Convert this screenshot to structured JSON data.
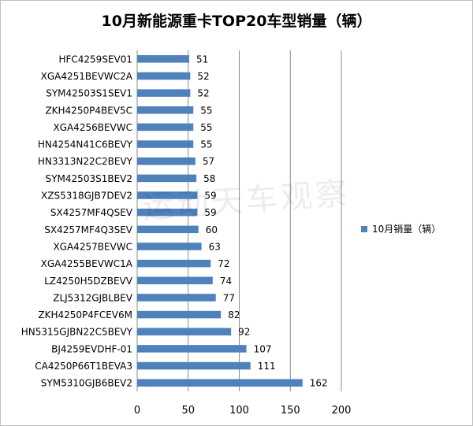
{
  "chart_data": {
    "type": "bar",
    "orientation": "horizontal",
    "title": "10月新能源重卡TOP20车型销量（辆）",
    "categories": [
      "HFC4259SEV01",
      "XGA4251BEVWC2A",
      "SYM42503S1SEV1",
      "ZKH4250P4BEV5C",
      "XGA4256BEVWC",
      "HN4254N41C6BEVY",
      "HN3313N22C2BEVY",
      "SYM42503S1BEV2",
      "XZS5318GJB7DEV2",
      "SX4257MF4QSEV",
      "SX4257MF4Q3SEV",
      "XGA4257BEVWC",
      "XGA4255BEVWC1A",
      "LZ4250H5DZBEVV",
      "ZLJ5312GJBLBEV",
      "ZKH4250P4FCEV6M",
      "HN5315GJBN22C5BEVY",
      "BJ4259EVDHF-01",
      "CA4250P66T1BEVA3",
      "SYM5310GJB6BEV2"
    ],
    "series": [
      {
        "name": "10月销量（辆）",
        "values": [
          51,
          52,
          52,
          55,
          55,
          55,
          57,
          58,
          59,
          59,
          60,
          63,
          72,
          74,
          77,
          82,
          92,
          107,
          111,
          162
        ]
      }
    ],
    "x_ticks": [
      "0",
      "50",
      "100",
      "150",
      "200"
    ],
    "xlim": [
      0,
      200
    ],
    "grid": "vertical",
    "legend_position": "right",
    "bar_color": "#4f81bd",
    "watermark": "运动天车观察"
  }
}
